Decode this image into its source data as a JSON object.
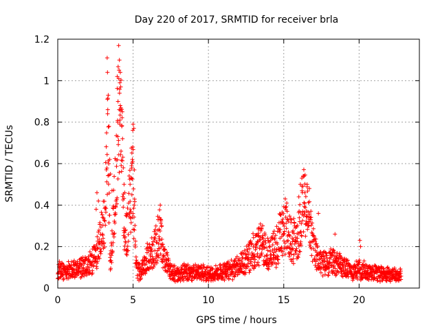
{
  "chart_data": {
    "type": "scatter",
    "title": "Day 220 of 2017, SRMTID for receiver brla",
    "xlabel": "GPS time / hours",
    "ylabel": "SRMTID / TECUs",
    "xlim": [
      0,
      24
    ],
    "ylim": [
      0,
      1.2
    ],
    "xticks": [
      "0",
      "5",
      "10",
      "15",
      "20"
    ],
    "xtick_values": [
      0,
      5,
      10,
      15,
      20
    ],
    "yticks": [
      "0",
      "0.2",
      "0.4",
      "0.6",
      "0.8",
      "1",
      "1.2"
    ],
    "ytick_values": [
      0,
      0.2,
      0.4,
      0.6,
      0.8,
      1.0,
      1.2
    ],
    "grid": true,
    "marker": "+",
    "color": "#ff0000",
    "series": [
      {
        "name": "SRMTID",
        "profile": [
          [
            0.0,
            0.09
          ],
          [
            0.5,
            0.08
          ],
          [
            1.0,
            0.09
          ],
          [
            1.5,
            0.1
          ],
          [
            2.0,
            0.11
          ],
          [
            2.5,
            0.15
          ],
          [
            2.8,
            0.22
          ],
          [
            3.0,
            0.28
          ],
          [
            3.2,
            0.45
          ],
          [
            3.3,
            0.75
          ],
          [
            3.5,
            0.1
          ],
          [
            3.8,
            0.45
          ],
          [
            4.0,
            0.85
          ],
          [
            4.2,
            0.92
          ],
          [
            4.4,
            0.3
          ],
          [
            4.6,
            0.25
          ],
          [
            4.8,
            0.45
          ],
          [
            5.0,
            0.55
          ],
          [
            5.2,
            0.1
          ],
          [
            5.5,
            0.07
          ],
          [
            6.0,
            0.15
          ],
          [
            6.5,
            0.2
          ],
          [
            6.8,
            0.28
          ],
          [
            7.0,
            0.15
          ],
          [
            7.5,
            0.08
          ],
          [
            8.0,
            0.06
          ],
          [
            8.5,
            0.08
          ],
          [
            9.0,
            0.07
          ],
          [
            9.5,
            0.08
          ],
          [
            10.0,
            0.07
          ],
          [
            10.5,
            0.07
          ],
          [
            11.0,
            0.08
          ],
          [
            11.5,
            0.09
          ],
          [
            12.0,
            0.1
          ],
          [
            12.5,
            0.13
          ],
          [
            13.0,
            0.18
          ],
          [
            13.5,
            0.21
          ],
          [
            14.0,
            0.16
          ],
          [
            14.5,
            0.2
          ],
          [
            15.0,
            0.3
          ],
          [
            15.3,
            0.26
          ],
          [
            15.6,
            0.22
          ],
          [
            16.0,
            0.26
          ],
          [
            16.3,
            0.42
          ],
          [
            16.6,
            0.34
          ],
          [
            17.0,
            0.18
          ],
          [
            17.5,
            0.12
          ],
          [
            18.0,
            0.12
          ],
          [
            18.5,
            0.13
          ],
          [
            19.0,
            0.1
          ],
          [
            19.5,
            0.08
          ],
          [
            20.0,
            0.09
          ],
          [
            20.5,
            0.08
          ],
          [
            21.0,
            0.08
          ],
          [
            21.5,
            0.07
          ],
          [
            22.0,
            0.07
          ],
          [
            22.8,
            0.06
          ]
        ],
        "peaks": [
          [
            3.28,
            1.11
          ],
          [
            3.3,
            1.04
          ],
          [
            3.35,
            0.93
          ],
          [
            3.32,
            0.86
          ],
          [
            3.4,
            0.78
          ],
          [
            3.45,
            0.62
          ],
          [
            3.5,
            0.55
          ],
          [
            3.6,
            0.47
          ],
          [
            3.95,
            1.02
          ],
          [
            4.05,
            1.01
          ],
          [
            4.12,
            0.99
          ],
          [
            4.18,
            0.97
          ],
          [
            4.1,
            0.94
          ],
          [
            4.0,
            0.9
          ],
          [
            4.15,
            0.88
          ],
          [
            4.08,
            0.86
          ],
          [
            3.98,
            0.8
          ],
          [
            4.25,
            0.78
          ],
          [
            4.3,
            0.72
          ],
          [
            4.2,
            0.66
          ],
          [
            4.35,
            0.58
          ],
          [
            4.4,
            0.5
          ],
          [
            4.45,
            0.46
          ],
          [
            5.0,
            0.79
          ],
          [
            5.05,
            0.77
          ],
          [
            4.98,
            0.68
          ],
          [
            4.95,
            0.62
          ],
          [
            4.9,
            0.59
          ],
          [
            4.85,
            0.53
          ],
          [
            5.08,
            0.57
          ],
          [
            4.8,
            0.5
          ],
          [
            4.92,
            0.45
          ],
          [
            2.6,
            0.46
          ],
          [
            2.7,
            0.42
          ],
          [
            2.55,
            0.38
          ],
          [
            6.75,
            0.34
          ],
          [
            6.85,
            0.33
          ],
          [
            6.9,
            0.3
          ],
          [
            16.35,
            0.54
          ],
          [
            16.2,
            0.53
          ],
          [
            16.1,
            0.5
          ],
          [
            16.55,
            0.5
          ],
          [
            16.7,
            0.48
          ],
          [
            16.4,
            0.46
          ],
          [
            16.0,
            0.44
          ],
          [
            15.1,
            0.43
          ],
          [
            15.2,
            0.41
          ],
          [
            17.3,
            0.36
          ],
          [
            20.05,
            0.23
          ],
          [
            20.1,
            0.2
          ],
          [
            18.4,
            0.26
          ],
          [
            13.6,
            0.3
          ]
        ]
      }
    ]
  }
}
